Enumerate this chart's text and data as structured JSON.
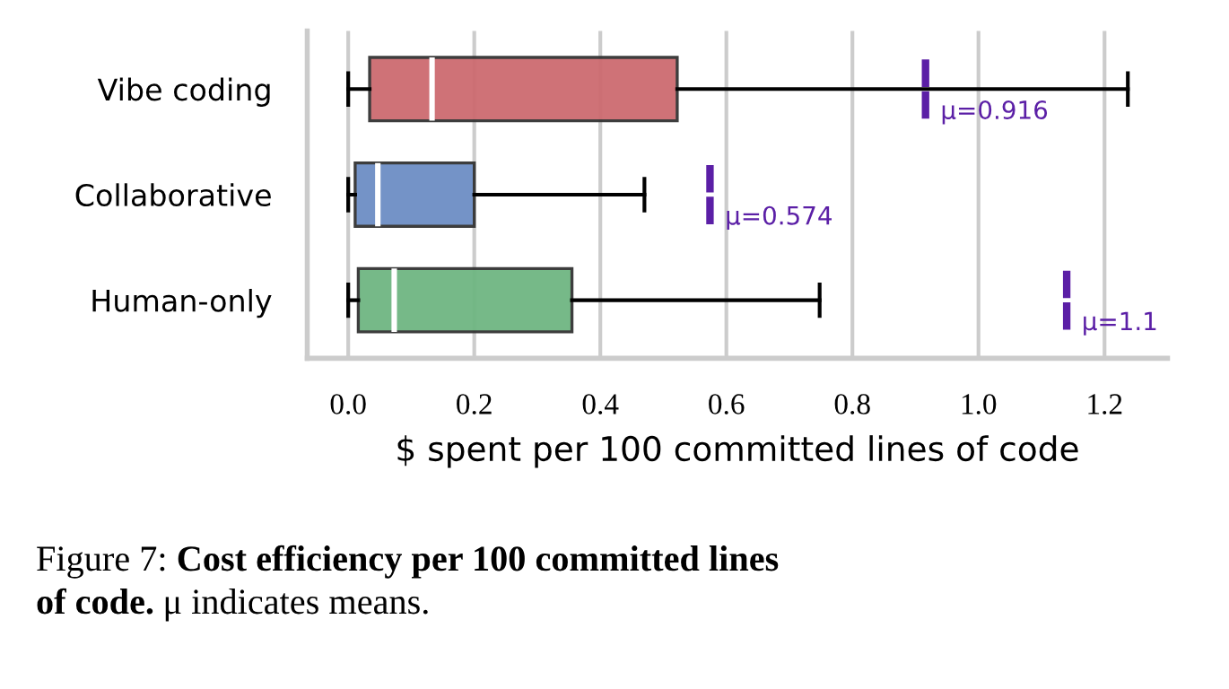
{
  "chart_data": {
    "type": "box",
    "orientation": "horizontal",
    "xlabel": "$ spent per 100 committed lines of code",
    "categories": [
      "Vibe coding",
      "Collaborative",
      "Human-only"
    ],
    "series": [
      {
        "colors": [
          "#cd6b70",
          "#6d8ec4",
          "#6fb682"
        ],
        "boxes": [
          {
            "low": 0.0,
            "q1": 0.034,
            "median": 0.133,
            "q3": 0.522,
            "high": 1.237,
            "mean": 0.916
          },
          {
            "low": 0.0,
            "q1": 0.011,
            "median": 0.047,
            "q3": 0.2,
            "high": 0.47,
            "mean": 0.574
          },
          {
            "low": 0.0,
            "q1": 0.016,
            "median": 0.073,
            "q3": 0.355,
            "high": 0.748,
            "mean": 1.14
          }
        ]
      }
    ],
    "xlim": [
      -0.065,
      1.3
    ],
    "xticks": [
      {
        "value": 0.0,
        "label": "0.0"
      },
      0.2,
      0.4,
      0.6,
      0.8,
      {
        "value": 1.0,
        "label": "1.0"
      },
      1.2
    ],
    "grid": "x",
    "annotations": [
      {
        "text": "μ=0.916",
        "x": 0.916,
        "y": "Vibe coding"
      },
      {
        "text": "μ=0.574",
        "x": 0.574,
        "y": "Collaborative"
      },
      {
        "text": "μ=1.1",
        "x": 1.14,
        "y": "Human-only"
      },
      "Figure 7:",
      "Cost efficiency per 100 committed lines",
      "of code.",
      "μ indicates means."
    ]
  }
}
